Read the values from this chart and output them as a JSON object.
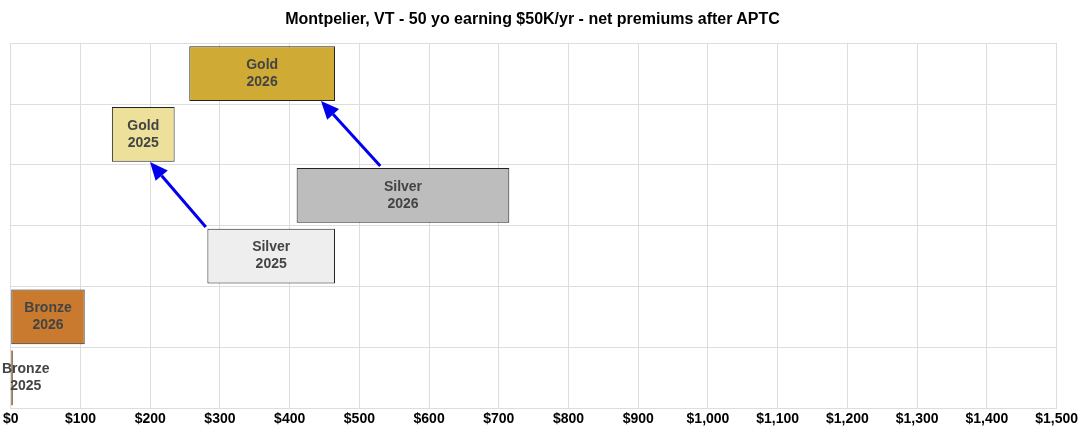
{
  "chart_data": {
    "type": "bar",
    "orientation": "horizontal",
    "title": "Montpelier, VT - 50 yo earning $50K/yr - net premiums after APTC",
    "categories": [
      "Gold 2026",
      "Gold 2025",
      "Silver 2026",
      "Silver 2025",
      "Bronze 2026",
      "Bronze 2025"
    ],
    "base": [
      256,
      145,
      410,
      282,
      0,
      0
    ],
    "values": [
      209,
      90,
      305,
      183,
      106,
      3
    ],
    "colors": [
      "#cfab35",
      "#ece09a",
      "#bdbdbd",
      "#eeeeee",
      "#c97a2e",
      "#8a6a48"
    ],
    "xlim": [
      0,
      1500
    ],
    "xticks": [
      {
        "value": 0,
        "label": "$0"
      },
      {
        "value": 100,
        "label": "$100"
      },
      {
        "value": 200,
        "label": "$200"
      },
      {
        "value": 300,
        "label": "$300"
      },
      {
        "value": 400,
        "label": "$400"
      },
      {
        "value": 500,
        "label": "$500"
      },
      {
        "value": 600,
        "label": "$600"
      },
      {
        "value": 700,
        "label": "$700"
      },
      {
        "value": 800,
        "label": "$800"
      },
      {
        "value": 900,
        "label": "$900"
      },
      {
        "value": 1000,
        "label": "$1,000"
      },
      {
        "value": 1100,
        "label": "$1,100"
      },
      {
        "value": 1200,
        "label": "$1,200"
      },
      {
        "value": 1300,
        "label": "$1,300"
      },
      {
        "value": 1400,
        "label": "$1,400"
      },
      {
        "value": 1500,
        "label": "$1,500"
      }
    ],
    "tick_labels": "x",
    "grid": true,
    "legend": false
  }
}
